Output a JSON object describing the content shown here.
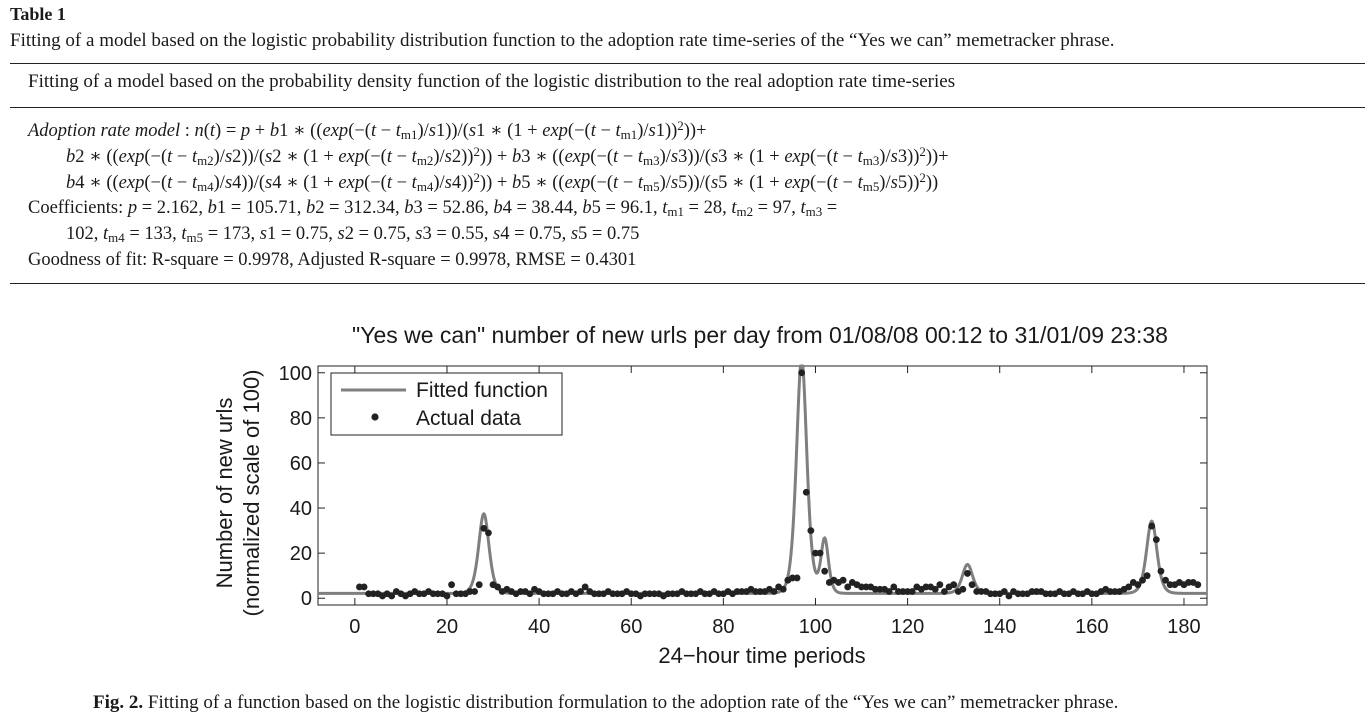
{
  "table": {
    "label": "Table 1",
    "caption": "Fitting of a model based on the logistic probability distribution function to the adoption rate time-series of the “Yes we can” memetracker phrase.",
    "header": "Fitting of a model based on the probability density function of the logistic distribution to the real adoption rate time-series",
    "model_label": "Adoption rate model",
    "coefficients_label": "Coefficients:",
    "coefficients": {
      "p": "2.162",
      "b1": "105.71",
      "b2": "312.34",
      "b3": "52.86",
      "b4": "38.44",
      "b5": "96.1",
      "tm1": "28",
      "tm2": "97",
      "tm3": "102",
      "tm4": "133",
      "tm5": "173",
      "s1": "0.75",
      "s2": "0.75",
      "s3": "0.55",
      "s4": "0.75",
      "s5": "0.75"
    },
    "goodness_label": "Goodness of fit:",
    "goodness": "R-square = 0.9978, Adjusted R-square = 0.9978, RMSE = 0.4301"
  },
  "figure": {
    "caption_label": "Fig. 2.",
    "caption": "Fitting of a function based on the logistic distribution formulation to the adoption rate of the “Yes we can” memetracker phrase."
  },
  "chart_data": {
    "type": "line",
    "title": "\"Yes we can\" number of new urls per day from 01/08/08 00:12 to 31/01/09 23:38",
    "xlabel": "24−hour time periods",
    "ylabel": [
      "Number of new urls",
      "(normalized scale of 100)"
    ],
    "xlim": [
      -8,
      185
    ],
    "ylim": [
      -3,
      103
    ],
    "xticks": [
      0,
      20,
      40,
      60,
      80,
      100,
      120,
      140,
      160,
      180
    ],
    "yticks": [
      0,
      20,
      40,
      60,
      80,
      100
    ],
    "legend_position": "top-left",
    "grid": false,
    "fitted_color": "#7f7f7f",
    "data_color": "#222222",
    "series": [
      {
        "name": "Fitted function",
        "style": "line",
        "model": {
          "p": 2.162,
          "components": [
            {
              "b": 105.71,
              "tm": 28,
              "s": 0.75
            },
            {
              "b": 312.34,
              "tm": 97,
              "s": 0.75
            },
            {
              "b": 52.86,
              "tm": 102,
              "s": 0.55
            },
            {
              "b": 38.44,
              "tm": 133,
              "s": 0.75
            },
            {
              "b": 96.1,
              "tm": 173,
              "s": 0.75
            }
          ]
        },
        "x_range": [
          -8,
          185
        ]
      },
      {
        "name": "Actual data",
        "style": "markers",
        "x": [
          1,
          2,
          3,
          4,
          5,
          6,
          7,
          8,
          9,
          10,
          11,
          12,
          13,
          14,
          15,
          16,
          17,
          18,
          19,
          20,
          21,
          22,
          23,
          24,
          25,
          26,
          27,
          28,
          29,
          30,
          31,
          32,
          33,
          34,
          35,
          36,
          37,
          38,
          39,
          40,
          41,
          42,
          43,
          44,
          45,
          46,
          47,
          48,
          49,
          50,
          51,
          52,
          53,
          54,
          55,
          56,
          57,
          58,
          59,
          60,
          61,
          62,
          63,
          64,
          65,
          66,
          67,
          68,
          69,
          70,
          71,
          72,
          73,
          74,
          75,
          76,
          77,
          78,
          79,
          80,
          81,
          82,
          83,
          84,
          85,
          86,
          87,
          88,
          89,
          90,
          91,
          92,
          93,
          94,
          95,
          96,
          97,
          98,
          99,
          100,
          101,
          102,
          103,
          104,
          105,
          106,
          107,
          108,
          109,
          110,
          111,
          112,
          113,
          114,
          115,
          116,
          117,
          118,
          119,
          120,
          121,
          122,
          123,
          124,
          125,
          126,
          127,
          128,
          129,
          130,
          131,
          132,
          133,
          134,
          135,
          136,
          137,
          138,
          139,
          140,
          141,
          142,
          143,
          144,
          145,
          146,
          147,
          148,
          149,
          150,
          151,
          152,
          153,
          154,
          155,
          156,
          157,
          158,
          159,
          160,
          161,
          162,
          163,
          164,
          165,
          166,
          167,
          168,
          169,
          170,
          171,
          172,
          173,
          174,
          175,
          176,
          177,
          178,
          179,
          180,
          181,
          182,
          183
        ],
        "y": [
          5,
          5,
          2,
          2,
          2,
          1,
          2,
          1,
          3,
          2,
          1,
          2,
          3,
          2,
          2,
          3,
          2,
          2,
          2,
          1,
          6,
          2,
          2,
          2,
          3,
          3,
          6,
          31,
          29,
          6,
          5,
          3,
          4,
          3,
          2,
          3,
          3,
          2,
          4,
          3,
          2,
          2,
          2,
          3,
          2,
          2,
          3,
          2,
          3,
          5,
          3,
          2,
          2,
          2,
          3,
          2,
          2,
          2,
          3,
          2,
          2,
          1,
          2,
          2,
          2,
          2,
          1,
          2,
          2,
          2,
          3,
          2,
          2,
          2,
          3,
          2,
          2,
          3,
          2,
          2,
          3,
          2,
          3,
          3,
          3,
          4,
          3,
          3,
          3,
          4,
          3,
          5,
          4,
          8,
          9,
          9,
          100,
          47,
          30,
          20,
          20,
          12,
          7,
          8,
          7,
          8,
          5,
          7,
          6,
          5,
          5,
          5,
          4,
          4,
          4,
          3,
          5,
          3,
          3,
          3,
          3,
          5,
          4,
          5,
          5,
          4,
          6,
          3,
          5,
          6,
          3,
          4,
          11,
          6,
          3,
          3,
          3,
          2,
          2,
          2,
          3,
          1,
          3,
          2,
          2,
          2,
          3,
          3,
          3,
          2,
          2,
          2,
          3,
          2,
          2,
          3,
          2,
          2,
          3,
          2,
          2,
          3,
          4,
          3,
          3,
          3,
          4,
          5,
          7,
          6,
          8,
          10,
          32,
          26,
          12,
          8,
          6,
          6,
          7,
          6,
          7,
          7,
          6
        ]
      }
    ]
  }
}
